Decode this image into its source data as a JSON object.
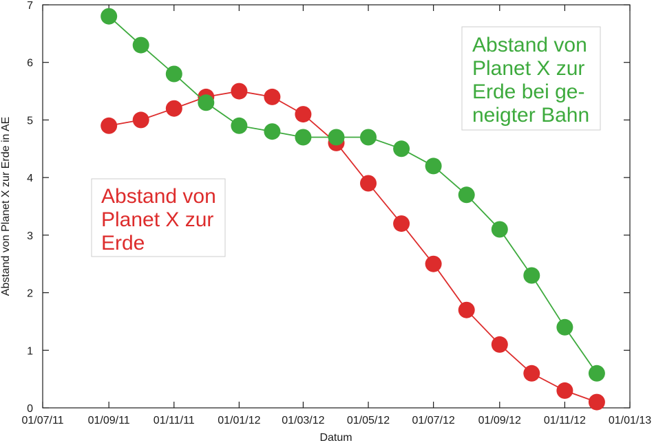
{
  "chart_data": {
    "type": "line",
    "title": "",
    "xlabel": "Datum",
    "ylabel": "Abstand von Planet X zur Erde in AE",
    "ylim": [
      0,
      7
    ],
    "xlim": [
      "2011-07-01",
      "2013-01-01"
    ],
    "y_ticks": [
      "0",
      "1",
      "2",
      "3",
      "4",
      "5",
      "6",
      "7"
    ],
    "x_ticks": [
      "01/07/11",
      "01/09/11",
      "01/11/11",
      "01/01/12",
      "01/03/12",
      "01/05/12",
      "01/07/12",
      "01/09/12",
      "01/11/12",
      "01/01/13"
    ],
    "x_tick_dates": [
      "2011-07-01",
      "2011-09-01",
      "2011-11-01",
      "2012-01-01",
      "2012-03-01",
      "2012-05-01",
      "2012-07-01",
      "2012-09-01",
      "2012-11-01",
      "2013-01-01"
    ],
    "grid": false,
    "x": [
      "2011-09-01",
      "2011-10-01",
      "2011-11-01",
      "2011-12-01",
      "2012-01-01",
      "2012-02-01",
      "2012-03-01",
      "2012-04-01",
      "2012-05-01",
      "2012-06-01",
      "2012-07-01",
      "2012-08-01",
      "2012-09-01",
      "2012-10-01",
      "2012-11-01",
      "2012-12-01"
    ],
    "series": [
      {
        "color": "#dd2c2c",
        "values": [
          4.9,
          5.0,
          5.2,
          5.4,
          5.5,
          5.4,
          5.1,
          4.6,
          3.9,
          3.2,
          2.5,
          1.7,
          1.1,
          0.6,
          0.3,
          0.1
        ]
      },
      {
        "color": "#3daa3d",
        "values": [
          6.8,
          6.3,
          5.8,
          5.3,
          4.9,
          4.8,
          4.7,
          4.7,
          4.7,
          4.5,
          4.2,
          3.7,
          3.1,
          2.3,
          1.4,
          0.6
        ]
      }
    ],
    "annotations": [
      {
        "lines": [
          "Abstand von",
          "Planet X zur",
          "Erde"
        ],
        "color": "#dd2c2c"
      },
      {
        "lines": [
          "Abstand von",
          "Planet X zur",
          "Erde bei ge-",
          "neigter Bahn"
        ],
        "color": "#3daa3d"
      }
    ]
  }
}
